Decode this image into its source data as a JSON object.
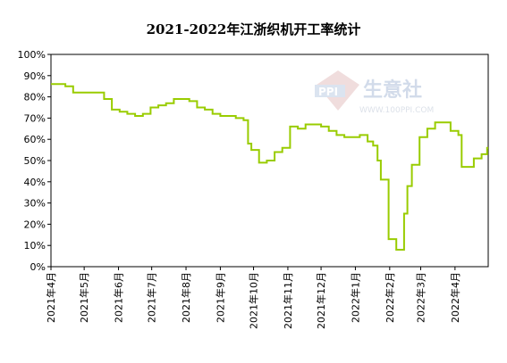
{
  "chart_data": {
    "type": "line",
    "title": "2021-2022年江浙织机开工率统计",
    "xlabel": "",
    "ylabel": "",
    "ylim": [
      0,
      100
    ],
    "y_ticks": [
      "0%",
      "10%",
      "20%",
      "30%",
      "40%",
      "50%",
      "60%",
      "70%",
      "80%",
      "90%",
      "100%"
    ],
    "x_ticks": [
      "2021年4月",
      "2021年5月",
      "2021年6月",
      "2021年7月",
      "2021年8月",
      "2021年9月",
      "2021年10月",
      "2021年11月",
      "2021年12月",
      "2022年1月",
      "2022年2月",
      "2022年3月",
      "2022年4月"
    ],
    "grid": false,
    "legend": "none",
    "series": [
      {
        "color": "#99cc00",
        "x": [
          "2021-04-01",
          "2021-04-07",
          "2021-04-14",
          "2021-04-21",
          "2021-04-28",
          "2021-05-05",
          "2021-05-12",
          "2021-05-19",
          "2021-05-26",
          "2021-06-02",
          "2021-06-09",
          "2021-06-16",
          "2021-06-23",
          "2021-06-30",
          "2021-07-07",
          "2021-07-14",
          "2021-07-21",
          "2021-07-28",
          "2021-08-04",
          "2021-08-11",
          "2021-08-18",
          "2021-08-25",
          "2021-09-01",
          "2021-09-08",
          "2021-09-15",
          "2021-09-22",
          "2021-09-26",
          "2021-09-29",
          "2021-10-06",
          "2021-10-13",
          "2021-10-20",
          "2021-10-27",
          "2021-11-03",
          "2021-11-10",
          "2021-11-17",
          "2021-11-24",
          "2021-12-01",
          "2021-12-08",
          "2021-12-15",
          "2021-12-22",
          "2021-12-29",
          "2022-01-05",
          "2022-01-12",
          "2022-01-17",
          "2022-01-21",
          "2022-01-24",
          "2022-01-31",
          "2022-02-07",
          "2022-02-10",
          "2022-02-14",
          "2022-02-17",
          "2022-02-21",
          "2022-02-28",
          "2022-03-07",
          "2022-03-14",
          "2022-03-21",
          "2022-03-28",
          "2022-04-04",
          "2022-04-07",
          "2022-04-11",
          "2022-04-18",
          "2022-04-25",
          "2022-04-30"
        ],
        "values": [
          86,
          86,
          85,
          82,
          82,
          82,
          82,
          79,
          74,
          73,
          72,
          71,
          72,
          75,
          76,
          77,
          79,
          79,
          78,
          75,
          74,
          72,
          71,
          71,
          70,
          69,
          58,
          55,
          49,
          50,
          54,
          56,
          66,
          65,
          67,
          67,
          66,
          64,
          62,
          61,
          61,
          62,
          59,
          57,
          50,
          41,
          13,
          8,
          8,
          25,
          38,
          48,
          61,
          65,
          68,
          68,
          64,
          62,
          47,
          47,
          51,
          53,
          56
        ]
      }
    ]
  },
  "watermark": {
    "badge": "PPI",
    "brand": "生意社",
    "url": "WWW.100PPI.COM"
  }
}
